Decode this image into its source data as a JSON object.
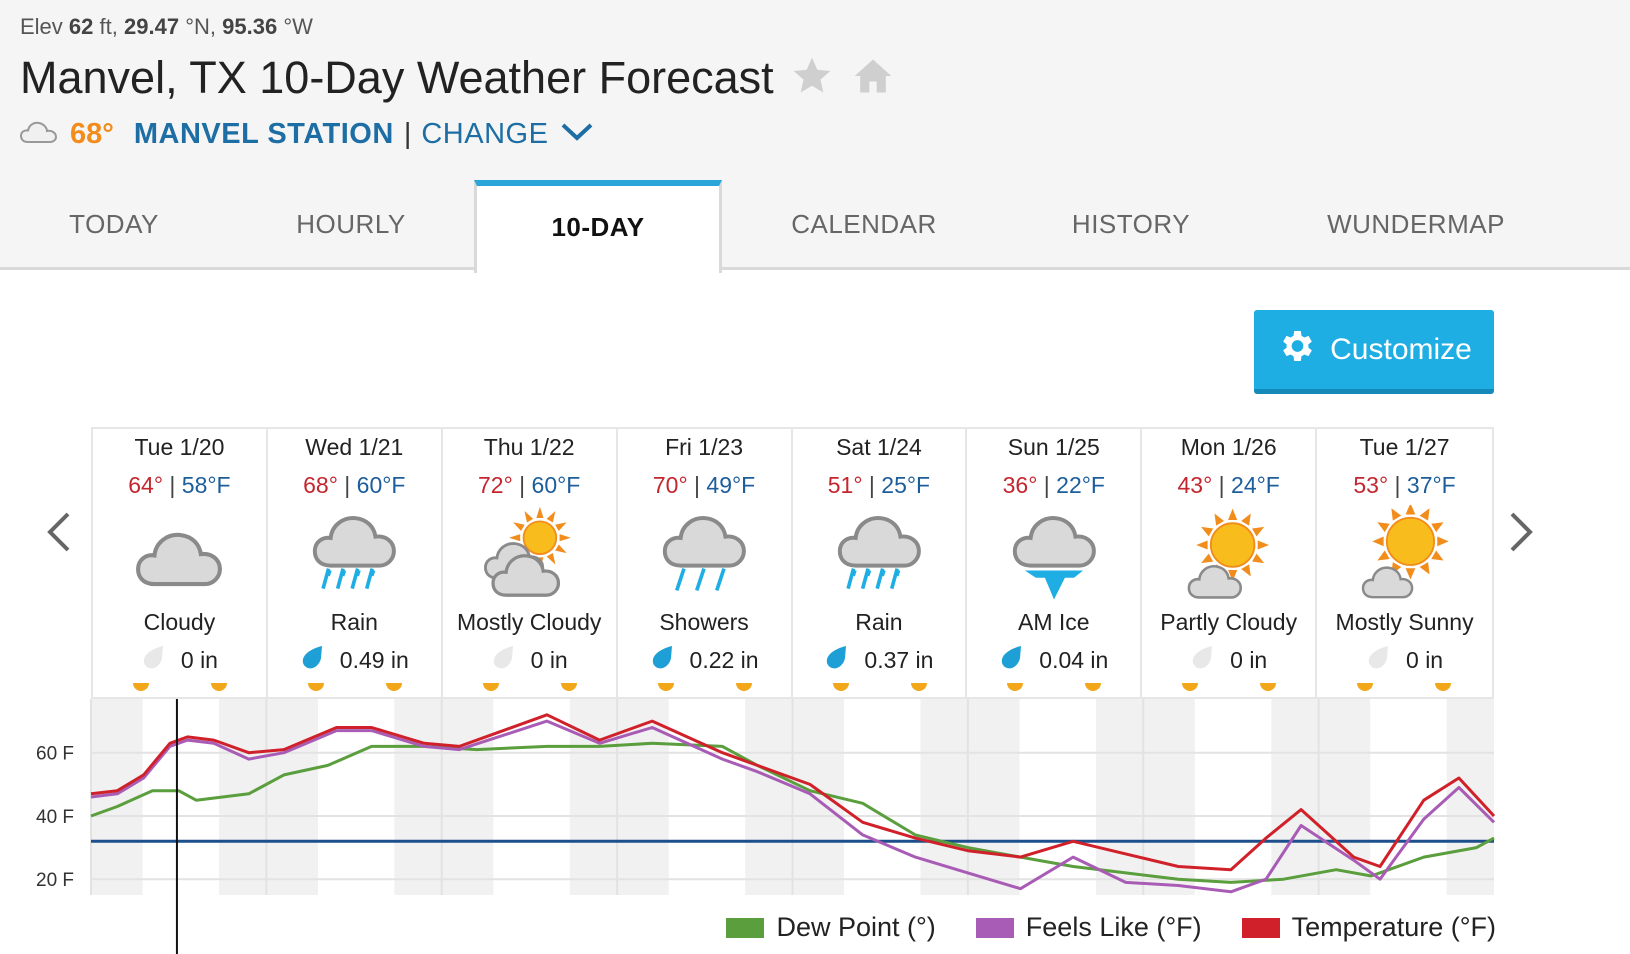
{
  "header": {
    "elev_label": "Elev",
    "elev_value": "62",
    "elev_unit": "ft,",
    "lat_value": "29.47",
    "lat_unit": "°N,",
    "lon_value": "95.36",
    "lon_unit": "°W",
    "title": "Manvel, TX 10-Day Weather Forecast",
    "current_temp": "68°",
    "station": "MANVEL STATION",
    "separator": "|",
    "change": "CHANGE"
  },
  "tabs": [
    {
      "label": "TODAY"
    },
    {
      "label": "HOURLY"
    },
    {
      "label": "10-DAY"
    },
    {
      "label": "CALENDAR"
    },
    {
      "label": "HISTORY"
    },
    {
      "label": "WUNDERMAP"
    }
  ],
  "active_tab": "10-DAY",
  "customize_label": "Customize",
  "days": [
    {
      "date": "Tue 1/20",
      "hi": "64°",
      "lo": "58°F",
      "icon": "cloudy-icon",
      "cond": "Cloudy",
      "precip": "0 in",
      "drop": "empty"
    },
    {
      "date": "Wed 1/21",
      "hi": "68°",
      "lo": "60°F",
      "icon": "rain-icon",
      "cond": "Rain",
      "precip": "0.49 in",
      "drop": "filled"
    },
    {
      "date": "Thu 1/22",
      "hi": "72°",
      "lo": "60°F",
      "icon": "mostly-cloudy-icon",
      "cond": "Mostly Cloudy",
      "precip": "0 in",
      "drop": "empty"
    },
    {
      "date": "Fri 1/23",
      "hi": "70°",
      "lo": "49°F",
      "icon": "showers-icon",
      "cond": "Showers",
      "precip": "0.22 in",
      "drop": "filled"
    },
    {
      "date": "Sat 1/24",
      "hi": "51°",
      "lo": "25°F",
      "icon": "rain-icon",
      "cond": "Rain",
      "precip": "0.37 in",
      "drop": "filled"
    },
    {
      "date": "Sun 1/25",
      "hi": "36°",
      "lo": "22°F",
      "icon": "ice-icon",
      "cond": "AM Ice",
      "precip": "0.04 in",
      "drop": "filled"
    },
    {
      "date": "Mon 1/26",
      "hi": "43°",
      "lo": "24°F",
      "icon": "partly-cloudy-icon",
      "cond": "Partly Cloudy",
      "precip": "0 in",
      "drop": "empty"
    },
    {
      "date": "Tue 1/27",
      "hi": "53°",
      "lo": "37°F",
      "icon": "mostly-sunny-icon",
      "cond": "Mostly Sunny",
      "precip": "0 in",
      "drop": "empty"
    }
  ],
  "colors": {
    "dew_point": "#5a9e3d",
    "feels_like": "#a85cb5",
    "temperature": "#d0212a",
    "freezing_line": "#1c4f8c",
    "accent": "#1eaee3"
  },
  "chart_data": {
    "type": "line",
    "y_ticks": [
      "60 F",
      "40 F",
      "20 F"
    ],
    "y_tick_values": [
      60,
      40,
      20
    ],
    "ylim": [
      15,
      77
    ],
    "x_range_days": [
      0,
      8
    ],
    "freezing_line": 32,
    "series": [
      {
        "name": "Dew Point (°)",
        "key": "dew_point",
        "x": [
          0,
          0.15,
          0.35,
          0.5,
          0.6,
          0.9,
          1.1,
          1.35,
          1.6,
          1.9,
          2.2,
          2.6,
          2.9,
          3.2,
          3.6,
          3.8,
          4.1,
          4.4,
          4.7,
          5.0,
          5.3,
          5.6,
          5.9,
          6.2,
          6.5,
          6.8,
          7.1,
          7.3,
          7.6,
          7.9,
          8.0
        ],
        "y": [
          40,
          43,
          48,
          48,
          45,
          47,
          53,
          56,
          62,
          62,
          61,
          62,
          62,
          63,
          62,
          56,
          48,
          44,
          34,
          30,
          27,
          24,
          22,
          20,
          19,
          20,
          23,
          21,
          27,
          30,
          33
        ]
      },
      {
        "name": "Feels Like (°F)",
        "key": "feels_like",
        "x": [
          0,
          0.15,
          0.3,
          0.45,
          0.55,
          0.7,
          0.9,
          1.1,
          1.4,
          1.6,
          1.9,
          2.1,
          2.6,
          2.9,
          3.2,
          3.6,
          3.8,
          4.1,
          4.4,
          4.7,
          5.0,
          5.3,
          5.6,
          5.9,
          6.2,
          6.5,
          6.7,
          6.9,
          7.2,
          7.35,
          7.6,
          7.8,
          8.0
        ],
        "y": [
          46,
          47,
          52,
          62,
          64,
          63,
          58,
          60,
          67,
          67,
          62,
          61,
          70,
          63,
          68,
          58,
          54,
          47,
          34,
          27,
          22,
          17,
          27,
          19,
          18,
          16,
          20,
          37,
          26,
          20,
          39,
          49,
          38
        ]
      },
      {
        "name": "Temperature (°F)",
        "key": "temperature",
        "x": [
          0,
          0.15,
          0.3,
          0.45,
          0.55,
          0.7,
          0.9,
          1.1,
          1.4,
          1.6,
          1.9,
          2.1,
          2.6,
          2.9,
          3.2,
          3.6,
          3.8,
          4.1,
          4.4,
          4.7,
          5.0,
          5.3,
          5.6,
          5.9,
          6.2,
          6.5,
          6.7,
          6.9,
          7.2,
          7.35,
          7.6,
          7.8,
          8.0
        ],
        "y": [
          47,
          48,
          53,
          63,
          65,
          64,
          60,
          61,
          68,
          68,
          63,
          62,
          72,
          64,
          70,
          60,
          56,
          50,
          38,
          33,
          29,
          27,
          32,
          28,
          24,
          23,
          33,
          42,
          27,
          24,
          45,
          52,
          40
        ]
      }
    ],
    "legend_position": "bottom-right"
  }
}
